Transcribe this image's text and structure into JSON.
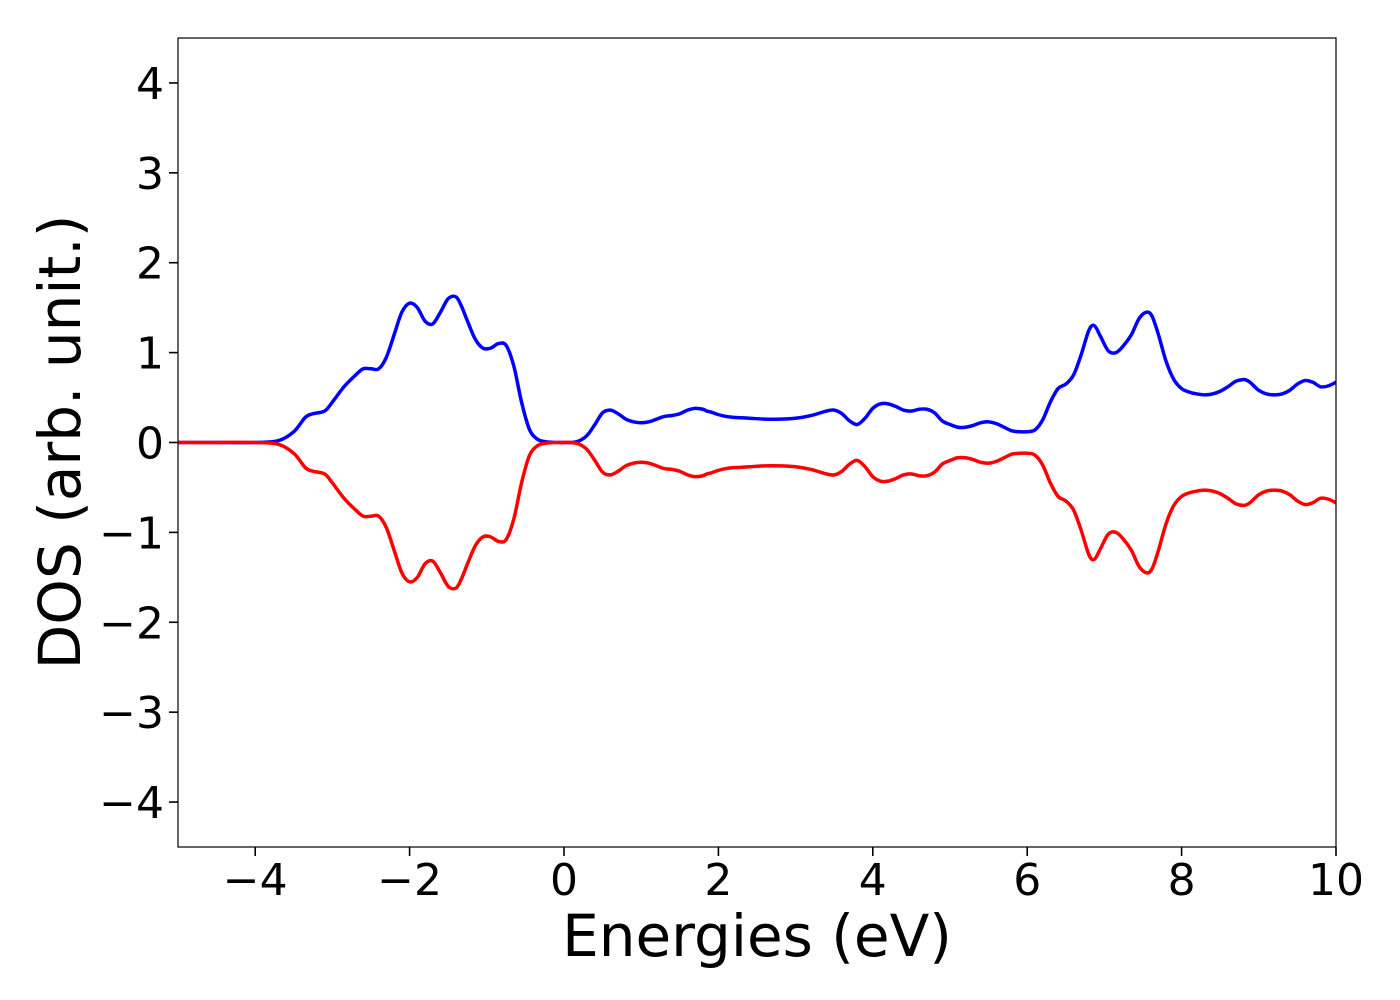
{
  "chart_data": {
    "type": "line",
    "xlabel": "Energies (eV)",
    "ylabel": "DOS (arb. unit.)",
    "xlim": [
      -5,
      10
    ],
    "ylim": [
      -4.5,
      4.5
    ],
    "xticks": [
      -4,
      -2,
      0,
      2,
      4,
      6,
      8,
      10
    ],
    "xtick_labels": [
      "−4",
      "−2",
      "0",
      "2",
      "4",
      "6",
      "8",
      "10"
    ],
    "yticks": [
      4,
      3,
      2,
      1,
      0,
      -1,
      -2,
      -3,
      -4
    ],
    "ytick_labels": [
      "4",
      "3",
      "2",
      "1",
      "0",
      "−1",
      "−2",
      "−3",
      "−4"
    ],
    "grid": false,
    "series": [
      {
        "color": "#0000ff",
        "x": [
          -5,
          -4.5,
          -4.0,
          -3.7,
          -3.5,
          -3.35,
          -3.25,
          -3.1,
          -3.0,
          -2.85,
          -2.7,
          -2.6,
          -2.5,
          -2.4,
          -2.3,
          -2.2,
          -2.1,
          -2.0,
          -1.9,
          -1.8,
          -1.7,
          -1.6,
          -1.5,
          -1.4,
          -1.33,
          -1.25,
          -1.15,
          -1.05,
          -0.95,
          -0.85,
          -0.75,
          -0.65,
          -0.55,
          -0.45,
          -0.35,
          -0.25,
          -0.1,
          0.0,
          0.1,
          0.2,
          0.3,
          0.4,
          0.5,
          0.6,
          0.7,
          0.8,
          0.9,
          1.0,
          1.1,
          1.2,
          1.3,
          1.4,
          1.5,
          1.6,
          1.7,
          1.8,
          1.85,
          1.9,
          2.0,
          2.1,
          2.2,
          2.4,
          2.6,
          2.8,
          3.0,
          3.2,
          3.4,
          3.5,
          3.6,
          3.7,
          3.8,
          3.9,
          4.0,
          4.1,
          4.2,
          4.3,
          4.4,
          4.5,
          4.6,
          4.7,
          4.8,
          4.9,
          5.0,
          5.1,
          5.2,
          5.3,
          5.4,
          5.5,
          5.6,
          5.7,
          5.8,
          5.9,
          6.0,
          6.1,
          6.2,
          6.3,
          6.4,
          6.5,
          6.6,
          6.7,
          6.8,
          6.87,
          6.95,
          7.05,
          7.15,
          7.25,
          7.35,
          7.45,
          7.55,
          7.62,
          7.7,
          7.8,
          7.9,
          8.0,
          8.1,
          8.2,
          8.3,
          8.4,
          8.5,
          8.6,
          8.7,
          8.8,
          8.85,
          8.9,
          9.0,
          9.1,
          9.2,
          9.3,
          9.4,
          9.5,
          9.6,
          9.7,
          9.8,
          9.9,
          10.0
        ],
        "y": [
          0,
          0,
          0,
          0.02,
          0.12,
          0.28,
          0.32,
          0.35,
          0.45,
          0.62,
          0.75,
          0.82,
          0.82,
          0.82,
          0.95,
          1.2,
          1.45,
          1.55,
          1.5,
          1.35,
          1.32,
          1.45,
          1.6,
          1.62,
          1.52,
          1.35,
          1.15,
          1.05,
          1.05,
          1.1,
          1.08,
          0.85,
          0.45,
          0.15,
          0.04,
          0.01,
          0.0,
          0.0,
          0.0,
          0.02,
          0.08,
          0.2,
          0.33,
          0.36,
          0.32,
          0.26,
          0.23,
          0.22,
          0.23,
          0.26,
          0.29,
          0.3,
          0.32,
          0.36,
          0.38,
          0.37,
          0.35,
          0.34,
          0.31,
          0.29,
          0.28,
          0.27,
          0.26,
          0.26,
          0.27,
          0.3,
          0.35,
          0.36,
          0.32,
          0.24,
          0.2,
          0.27,
          0.38,
          0.43,
          0.43,
          0.4,
          0.36,
          0.35,
          0.37,
          0.37,
          0.33,
          0.24,
          0.2,
          0.17,
          0.17,
          0.19,
          0.22,
          0.23,
          0.21,
          0.17,
          0.13,
          0.12,
          0.12,
          0.14,
          0.25,
          0.45,
          0.6,
          0.65,
          0.75,
          0.98,
          1.25,
          1.3,
          1.18,
          1.02,
          1.0,
          1.08,
          1.2,
          1.38,
          1.45,
          1.4,
          1.2,
          0.9,
          0.7,
          0.6,
          0.56,
          0.54,
          0.53,
          0.54,
          0.57,
          0.62,
          0.68,
          0.7,
          0.69,
          0.66,
          0.58,
          0.54,
          0.53,
          0.54,
          0.58,
          0.65,
          0.69,
          0.67,
          0.62,
          0.63,
          0.67
        ]
      },
      {
        "color": "#ff0000",
        "x": [
          -5,
          -4.5,
          -4.0,
          -3.7,
          -3.5,
          -3.35,
          -3.25,
          -3.1,
          -3.0,
          -2.85,
          -2.7,
          -2.6,
          -2.5,
          -2.4,
          -2.3,
          -2.2,
          -2.1,
          -2.0,
          -1.9,
          -1.8,
          -1.7,
          -1.6,
          -1.5,
          -1.4,
          -1.33,
          -1.25,
          -1.15,
          -1.05,
          -0.95,
          -0.85,
          -0.75,
          -0.65,
          -0.55,
          -0.45,
          -0.35,
          -0.25,
          -0.1,
          0.0,
          0.1,
          0.2,
          0.3,
          0.4,
          0.5,
          0.6,
          0.7,
          0.8,
          0.9,
          1.0,
          1.1,
          1.2,
          1.3,
          1.4,
          1.5,
          1.6,
          1.7,
          1.8,
          1.85,
          1.9,
          2.0,
          2.1,
          2.2,
          2.4,
          2.6,
          2.8,
          3.0,
          3.2,
          3.4,
          3.5,
          3.6,
          3.7,
          3.8,
          3.9,
          4.0,
          4.1,
          4.2,
          4.3,
          4.4,
          4.5,
          4.6,
          4.7,
          4.8,
          4.9,
          5.0,
          5.1,
          5.2,
          5.3,
          5.4,
          5.5,
          5.6,
          5.7,
          5.8,
          5.9,
          6.0,
          6.1,
          6.2,
          6.3,
          6.4,
          6.5,
          6.6,
          6.7,
          6.8,
          6.87,
          6.95,
          7.05,
          7.15,
          7.25,
          7.35,
          7.45,
          7.55,
          7.62,
          7.7,
          7.8,
          7.9,
          8.0,
          8.1,
          8.2,
          8.3,
          8.4,
          8.5,
          8.6,
          8.7,
          8.8,
          8.85,
          8.9,
          9.0,
          9.1,
          9.2,
          9.3,
          9.4,
          9.5,
          9.6,
          9.7,
          9.8,
          9.9,
          10.0
        ],
        "y": [
          0,
          0,
          0,
          -0.02,
          -0.12,
          -0.28,
          -0.32,
          -0.35,
          -0.45,
          -0.62,
          -0.75,
          -0.82,
          -0.82,
          -0.82,
          -0.95,
          -1.2,
          -1.45,
          -1.55,
          -1.5,
          -1.35,
          -1.32,
          -1.45,
          -1.6,
          -1.62,
          -1.52,
          -1.35,
          -1.15,
          -1.05,
          -1.05,
          -1.1,
          -1.08,
          -0.85,
          -0.45,
          -0.15,
          -0.04,
          -0.01,
          0.0,
          0.0,
          0.0,
          -0.02,
          -0.08,
          -0.2,
          -0.33,
          -0.36,
          -0.32,
          -0.26,
          -0.23,
          -0.22,
          -0.23,
          -0.26,
          -0.29,
          -0.3,
          -0.32,
          -0.36,
          -0.38,
          -0.37,
          -0.35,
          -0.34,
          -0.31,
          -0.29,
          -0.28,
          -0.27,
          -0.26,
          -0.26,
          -0.27,
          -0.3,
          -0.35,
          -0.36,
          -0.32,
          -0.24,
          -0.2,
          -0.27,
          -0.38,
          -0.43,
          -0.43,
          -0.4,
          -0.36,
          -0.35,
          -0.37,
          -0.37,
          -0.33,
          -0.24,
          -0.2,
          -0.17,
          -0.17,
          -0.19,
          -0.22,
          -0.23,
          -0.21,
          -0.17,
          -0.13,
          -0.12,
          -0.12,
          -0.14,
          -0.25,
          -0.45,
          -0.6,
          -0.65,
          -0.75,
          -0.98,
          -1.25,
          -1.3,
          -1.18,
          -1.02,
          -1.0,
          -1.08,
          -1.2,
          -1.38,
          -1.45,
          -1.4,
          -1.2,
          -0.9,
          -0.7,
          -0.6,
          -0.56,
          -0.54,
          -0.53,
          -0.54,
          -0.57,
          -0.62,
          -0.68,
          -0.7,
          -0.69,
          -0.66,
          -0.58,
          -0.54,
          -0.53,
          -0.54,
          -0.58,
          -0.65,
          -0.69,
          -0.67,
          -0.62,
          -0.63,
          -0.67
        ]
      }
    ]
  }
}
